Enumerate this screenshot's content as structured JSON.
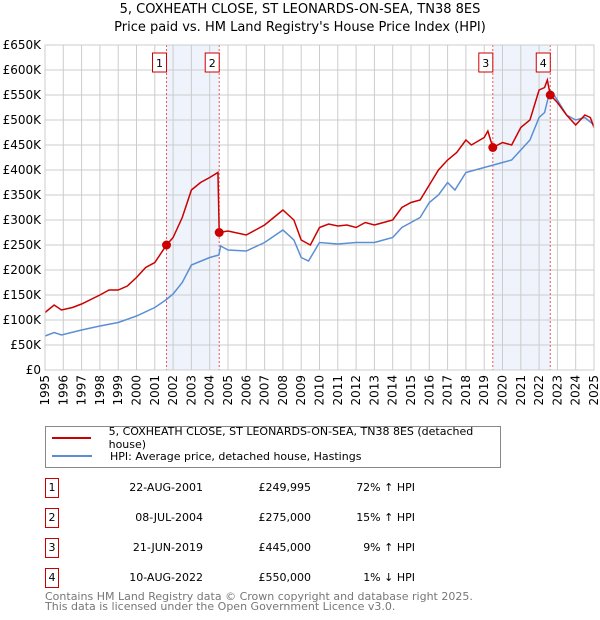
{
  "chart_data": {
    "type": "line",
    "title": "5, COXHEATH CLOSE, ST LEONARDS-ON-SEA, TN38 8ES",
    "subtitle": "Price paid vs. HM Land Registry's House Price Index (HPI)",
    "xlim": [
      1995,
      2025
    ],
    "ylim": [
      0,
      650000
    ],
    "y_ticks": [
      "£0",
      "£50K",
      "£100K",
      "£150K",
      "£200K",
      "£250K",
      "£300K",
      "£350K",
      "£400K",
      "£450K",
      "£500K",
      "£550K",
      "£600K",
      "£650K"
    ],
    "x_ticks": [
      "1995",
      "1996",
      "1997",
      "1998",
      "1999",
      "2000",
      "2001",
      "2002",
      "2003",
      "2004",
      "2005",
      "2006",
      "2007",
      "2008",
      "2009",
      "2010",
      "2011",
      "2012",
      "2013",
      "2014",
      "2015",
      "2016",
      "2017",
      "2018",
      "2019",
      "2020",
      "2021",
      "2022",
      "2023",
      "2024",
      "2025"
    ],
    "grid": true,
    "series": [
      {
        "name": "5, COXHEATH CLOSE, ST LEONARDS-ON-SEA, TN38 8ES (detached house)",
        "color": "#cc0000",
        "points": [
          [
            1995,
            115
          ],
          [
            1995.5,
            130
          ],
          [
            1995.9,
            120
          ],
          [
            1996.5,
            125
          ],
          [
            1997,
            132
          ],
          [
            1998,
            150
          ],
          [
            1998.5,
            160
          ],
          [
            1999,
            160
          ],
          [
            1999.5,
            168
          ],
          [
            2000,
            185
          ],
          [
            2000.5,
            205
          ],
          [
            2001,
            215
          ],
          [
            2001.64,
            250
          ],
          [
            2002,
            265
          ],
          [
            2002.5,
            305
          ],
          [
            2003,
            360
          ],
          [
            2003.5,
            375
          ],
          [
            2004,
            385
          ],
          [
            2004.45,
            395
          ],
          [
            2004.52,
            275
          ],
          [
            2005,
            278
          ],
          [
            2006,
            270
          ],
          [
            2007,
            290
          ],
          [
            2007.5,
            305
          ],
          [
            2008,
            320
          ],
          [
            2008.6,
            300
          ],
          [
            2009,
            260
          ],
          [
            2009.5,
            250
          ],
          [
            2010,
            285
          ],
          [
            2010.5,
            292
          ],
          [
            2011,
            288
          ],
          [
            2011.5,
            290
          ],
          [
            2012,
            285
          ],
          [
            2012.5,
            295
          ],
          [
            2013,
            290
          ],
          [
            2014,
            300
          ],
          [
            2014.5,
            325
          ],
          [
            2015,
            335
          ],
          [
            2015.5,
            340
          ],
          [
            2016,
            370
          ],
          [
            2016.5,
            400
          ],
          [
            2017,
            420
          ],
          [
            2017.5,
            435
          ],
          [
            2018,
            460
          ],
          [
            2018.3,
            450
          ],
          [
            2019,
            465
          ],
          [
            2019.2,
            478
          ],
          [
            2019.47,
            445
          ],
          [
            2020,
            455
          ],
          [
            2020.5,
            450
          ],
          [
            2021,
            485
          ],
          [
            2021.5,
            500
          ],
          [
            2022,
            560
          ],
          [
            2022.3,
            565
          ],
          [
            2022.45,
            580
          ],
          [
            2022.61,
            550
          ],
          [
            2023,
            535
          ],
          [
            2023.5,
            510
          ],
          [
            2024,
            490
          ],
          [
            2024.5,
            510
          ],
          [
            2024.8,
            505
          ],
          [
            2025,
            485
          ]
        ]
      },
      {
        "name": "HPI: Average price, detached house, Hastings",
        "color": "#5b8fd4",
        "points": [
          [
            1995,
            68
          ],
          [
            1995.5,
            75
          ],
          [
            1995.9,
            70
          ],
          [
            1997,
            80
          ],
          [
            1998,
            88
          ],
          [
            1999,
            95
          ],
          [
            2000,
            108
          ],
          [
            2001,
            125
          ],
          [
            2001.6,
            140
          ],
          [
            2002,
            152
          ],
          [
            2002.5,
            175
          ],
          [
            2003,
            210
          ],
          [
            2004,
            225
          ],
          [
            2004.5,
            230
          ],
          [
            2004.6,
            248
          ],
          [
            2005,
            240
          ],
          [
            2006,
            238
          ],
          [
            2007,
            255
          ],
          [
            2008,
            280
          ],
          [
            2008.6,
            260
          ],
          [
            2009,
            225
          ],
          [
            2009.4,
            218
          ],
          [
            2010,
            255
          ],
          [
            2011,
            252
          ],
          [
            2012,
            255
          ],
          [
            2013,
            255
          ],
          [
            2014,
            265
          ],
          [
            2014.5,
            285
          ],
          [
            2015,
            295
          ],
          [
            2015.5,
            305
          ],
          [
            2016,
            335
          ],
          [
            2016.5,
            350
          ],
          [
            2017,
            375
          ],
          [
            2017.4,
            360
          ],
          [
            2018,
            395
          ],
          [
            2019,
            405
          ],
          [
            2019.5,
            410
          ],
          [
            2020,
            415
          ],
          [
            2020.5,
            420
          ],
          [
            2021,
            440
          ],
          [
            2021.5,
            460
          ],
          [
            2022,
            505
          ],
          [
            2022.3,
            515
          ],
          [
            2022.6,
            560
          ],
          [
            2023,
            540
          ],
          [
            2023.5,
            510
          ],
          [
            2024,
            500
          ],
          [
            2024.5,
            505
          ],
          [
            2025,
            490
          ]
        ]
      }
    ],
    "sales": [
      {
        "label": "1",
        "x": 2001.64,
        "y": 249995
      },
      {
        "label": "2",
        "x": 2004.52,
        "y": 275000
      },
      {
        "label": "3",
        "x": 2019.47,
        "y": 445000
      },
      {
        "label": "4",
        "x": 2022.61,
        "y": 550000
      }
    ],
    "shaded": [
      [
        2001.64,
        2004.52
      ],
      [
        2019.47,
        2022.61
      ]
    ]
  },
  "legend": {
    "property": "5, COXHEATH CLOSE, ST LEONARDS-ON-SEA, TN38 8ES (detached house)",
    "hpi": "HPI: Average price, detached house, Hastings"
  },
  "table": [
    {
      "n": "1",
      "date": "22-AUG-2001",
      "price": "£249,995",
      "hpi": "72% ↑ HPI"
    },
    {
      "n": "2",
      "date": "08-JUL-2004",
      "price": "£275,000",
      "hpi": "15% ↑ HPI"
    },
    {
      "n": "3",
      "date": "21-JUN-2019",
      "price": "£445,000",
      "hpi": "9% ↑ HPI"
    },
    {
      "n": "4",
      "date": "10-AUG-2022",
      "price": "£550,000",
      "hpi": "1% ↓ HPI"
    }
  ],
  "footer": [
    "Contains HM Land Registry data © Crown copyright and database right 2025.",
    "This data is licensed under the Open Government Licence v3.0."
  ]
}
